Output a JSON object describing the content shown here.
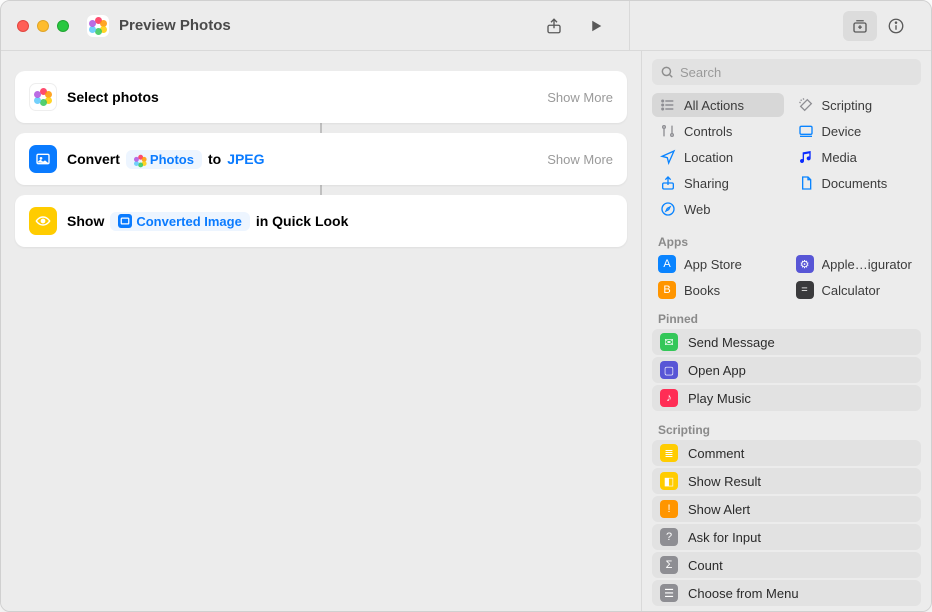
{
  "window": {
    "title": "Preview Photos"
  },
  "actions": [
    {
      "icon": "photos",
      "parts": [
        {
          "type": "bold",
          "text": "Select photos"
        }
      ],
      "showMore": "Show More"
    },
    {
      "icon": "image-blue",
      "parts": [
        {
          "type": "bold",
          "text": "Convert"
        },
        {
          "type": "token-photos",
          "text": "Photos"
        },
        {
          "type": "bold",
          "text": "to"
        },
        {
          "type": "blue",
          "text": "JPEG"
        }
      ],
      "showMore": "Show More"
    },
    {
      "icon": "eye-yellow",
      "parts": [
        {
          "type": "bold",
          "text": "Show"
        },
        {
          "type": "token-image",
          "text": "Converted Image"
        },
        {
          "type": "bold",
          "text": "in Quick Look"
        }
      ]
    }
  ],
  "sidebar": {
    "searchPlaceholder": "Search",
    "categories": [
      {
        "icon": "list",
        "label": "All Actions",
        "color": "#8e8e93",
        "selected": true
      },
      {
        "icon": "wand",
        "label": "Scripting",
        "color": "#8e8e93"
      },
      {
        "icon": "sliders",
        "label": "Controls",
        "color": "#8e8e93"
      },
      {
        "icon": "device",
        "label": "Device",
        "color": "#0a84ff"
      },
      {
        "icon": "location",
        "label": "Location",
        "color": "#0a84ff"
      },
      {
        "icon": "music",
        "label": "Media",
        "color": "#0a2bff"
      },
      {
        "icon": "share",
        "label": "Sharing",
        "color": "#0a84ff"
      },
      {
        "icon": "doc",
        "label": "Documents",
        "color": "#0a84ff"
      },
      {
        "icon": "safari",
        "label": "Web",
        "color": "#0a84ff"
      }
    ],
    "appsLabel": "Apps",
    "apps": [
      {
        "name": "App Store",
        "color": "#0a84ff",
        "glyph": "A"
      },
      {
        "name": "Apple…igurator",
        "color": "#5856d6",
        "glyph": "⚙"
      },
      {
        "name": "Books",
        "color": "#ff9500",
        "glyph": "B"
      },
      {
        "name": "Calculator",
        "color": "#3a3a3c",
        "glyph": "="
      }
    ],
    "pinnedLabel": "Pinned",
    "pinned": [
      {
        "name": "Send Message",
        "color": "#34c759",
        "glyph": "✉"
      },
      {
        "name": "Open App",
        "color": "#5856d6",
        "glyph": "▢"
      },
      {
        "name": "Play Music",
        "color": "#ff2d55",
        "glyph": "♪"
      }
    ],
    "scriptingLabel": "Scripting",
    "scripting": [
      {
        "name": "Comment",
        "color": "#ffcc00",
        "glyph": "≣"
      },
      {
        "name": "Show Result",
        "color": "#ffcc00",
        "glyph": "◧"
      },
      {
        "name": "Show Alert",
        "color": "#ff9500",
        "glyph": "!"
      },
      {
        "name": "Ask for Input",
        "color": "#8e8e93",
        "glyph": "?"
      },
      {
        "name": "Count",
        "color": "#8e8e93",
        "glyph": "Σ"
      },
      {
        "name": "Choose from Menu",
        "color": "#8e8e93",
        "glyph": "☰"
      }
    ]
  },
  "colors": {
    "windowBg": "#ececec",
    "cardBg": "#ffffff",
    "accentBlue": "#0a7bff",
    "tokenBg": "#edf5ff",
    "sidebarRowBg": "#e2e2e2",
    "selectedCatBg": "#d7d7d7",
    "border": "#d9d9d9",
    "mutedText": "#9a9a9a"
  }
}
